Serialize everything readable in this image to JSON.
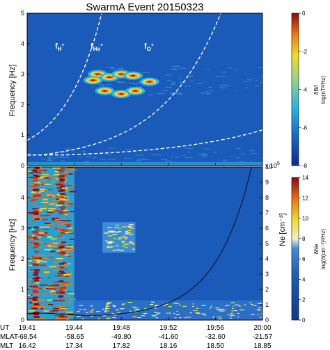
{
  "chart_data": [
    {
      "type": "heatmap",
      "title": "SwarmA   Event 20150323",
      "ylabel": "Frequency [Hz]",
      "ylim": [
        0,
        5
      ],
      "yticks": [
        "0",
        "1",
        "2",
        "3",
        "4",
        "5"
      ],
      "x": [
        "19:41",
        "19:44",
        "19:48",
        "19:52",
        "19:56",
        "20:00"
      ],
      "colorbar": {
        "label_line1": "δB//",
        "label_line2": "log(nT²/Hz)",
        "range": [
          -8,
          0
        ],
        "ticks": [
          "0",
          "-2",
          "-4",
          "-6",
          "-8"
        ],
        "scale_note": "x 10^5"
      },
      "curve_labels": {
        "h": "fH+",
        "he": "fHe+",
        "o": "fO+"
      },
      "colors": {
        "background": "#1a5ab8",
        "line": "#ffffff"
      }
    },
    {
      "type": "heatmap",
      "ylabel": "Frequency [Hz]",
      "ylim": [
        0,
        5
      ],
      "yticks": [
        "0",
        "1",
        "2",
        "3",
        "4"
      ],
      "ylabel_right": "Ne [cm⁻³]",
      "ylim_right": [
        0,
        10
      ],
      "yticks_right": [
        "0",
        "1",
        "2",
        "3",
        "4",
        "5",
        "6",
        "7",
        "8",
        "9",
        "10"
      ],
      "colorbar": {
        "label_line1": "δNe",
        "label_line2": "log(#(cm⁻³)²/Hz)",
        "range": [
          0,
          14
        ],
        "ticks": [
          "0",
          "2",
          "4",
          "6",
          "8",
          "10",
          "12",
          "14"
        ]
      },
      "colors": {
        "background": "#1a5ab8",
        "line": "#000000"
      }
    }
  ],
  "axis_table": {
    "rows": [
      {
        "label": "UT",
        "values": [
          "19:41",
          "19:44",
          "19:48",
          "19:52",
          "19:56",
          "20:00"
        ]
      },
      {
        "label": "MLAT",
        "values": [
          "-68.54",
          "-58.65",
          "-49.80",
          "-41.60",
          "-32.60",
          "-21.57"
        ]
      },
      {
        "label": "MLT",
        "values": [
          "16.42",
          "17.34",
          "17.82",
          "18.16",
          "18.50",
          "18.85"
        ]
      }
    ]
  }
}
